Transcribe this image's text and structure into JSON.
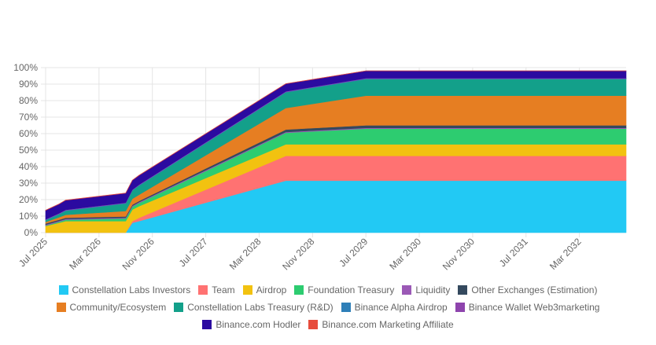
{
  "chart_data": {
    "type": "area",
    "stacked": true,
    "title": "",
    "xlabel": "",
    "ylabel": "",
    "x_start": "2025-07",
    "x_end": "2032-10",
    "x_tick_labels": [
      "Jul 2025",
      "Mar 2026",
      "Nov 2026",
      "Jul 2027",
      "Mar 2028",
      "Nov 2028",
      "Jul 2029",
      "Mar 2030",
      "Nov 2030",
      "Jul 2031",
      "Mar 2032"
    ],
    "x_tick_dates": [
      "2025-07",
      "2026-03",
      "2026-11",
      "2027-07",
      "2028-03",
      "2028-11",
      "2029-07",
      "2030-03",
      "2030-11",
      "2031-07",
      "2032-03"
    ],
    "y_tick_labels": [
      "0%",
      "10%",
      "20%",
      "30%",
      "40%",
      "50%",
      "60%",
      "70%",
      "80%",
      "90%",
      "100%"
    ],
    "ylim": [
      0,
      100
    ],
    "y_unit": "%",
    "grid": true,
    "legend_position": "bottom",
    "dates": [
      "2025-07",
      "2025-09",
      "2025-10",
      "2026-07",
      "2026-08",
      "2026-09",
      "2028-07",
      "2029-07",
      "2032-10"
    ],
    "series": [
      {
        "name": "Constellation Labs Investors",
        "color": "#22c9f4",
        "values": [
          0,
          0,
          0,
          0,
          6,
          7,
          31.5,
          31.5,
          31.5
        ]
      },
      {
        "name": "Team",
        "color": "#ff7272",
        "values": [
          0,
          0,
          0,
          0,
          1,
          2,
          15,
          15,
          15
        ]
      },
      {
        "name": "Airdrop",
        "color": "#f2c210",
        "values": [
          4,
          6,
          7,
          7,
          7,
          7,
          7,
          7,
          7
        ]
      },
      {
        "name": "Foundation Treasury",
        "color": "#2dcc70",
        "values": [
          0.3,
          0.6,
          0.8,
          1.6,
          1.8,
          2,
          7,
          9.5,
          9.5
        ]
      },
      {
        "name": "Liquidity",
        "color": "#9b59b6",
        "values": [
          0.5,
          0.5,
          0.5,
          0.5,
          0.5,
          0.5,
          0.5,
          0.5,
          0.5
        ]
      },
      {
        "name": "Other Exchanges (Estimation)",
        "color": "#34495e",
        "values": [
          0.7,
          0.7,
          0.7,
          0.7,
          0.7,
          0.7,
          1.5,
          1.5,
          1.5
        ]
      },
      {
        "name": "Community/Ecosystem",
        "color": "#e67e22",
        "values": [
          1,
          1.5,
          1.8,
          3.3,
          3.5,
          3.8,
          13,
          18,
          18
        ]
      },
      {
        "name": "Constellation Labs Treasury (R&D)",
        "color": "#13a08a",
        "values": [
          1,
          1.8,
          2.4,
          4.5,
          5,
          5.5,
          9.5,
          10,
          10
        ]
      },
      {
        "name": "Binance Alpha Airdrop",
        "color": "#2e7fb8",
        "values": [
          0.3,
          0.3,
          0.3,
          0.3,
          0.3,
          0.3,
          0.3,
          0.3,
          0.3
        ]
      },
      {
        "name": "Binance Wallet Web3marketing",
        "color": "#8e44ad",
        "values": [
          0.3,
          0.3,
          0.3,
          0.3,
          0.3,
          0.3,
          0.3,
          0.3,
          0.3
        ]
      },
      {
        "name": "Binance.com Hodler",
        "color": "#2b0aa0",
        "values": [
          5.4,
          5.6,
          5.8,
          5.7,
          5.6,
          5.6,
          4.6,
          4.4,
          4.4
        ]
      },
      {
        "name": "Binance.com Marketing Affiliate",
        "color": "#e74c3c",
        "values": [
          0.1,
          0.1,
          0.1,
          0.1,
          0.1,
          0.1,
          0.1,
          0.1,
          0.1
        ]
      }
    ]
  },
  "legend": {
    "rows": [
      [
        "Constellation Labs Investors",
        "Team",
        "Airdrop",
        "Foundation Treasury",
        "Liquidity",
        "Other Exchanges (Estimation)"
      ],
      [
        "Community/Ecosystem",
        "Constellation Labs Treasury (R&D)",
        "Binance Alpha Airdrop",
        "Binance Wallet Web3marketing"
      ],
      [
        "Binance.com Hodler",
        "Binance.com Marketing Affiliate"
      ]
    ]
  }
}
